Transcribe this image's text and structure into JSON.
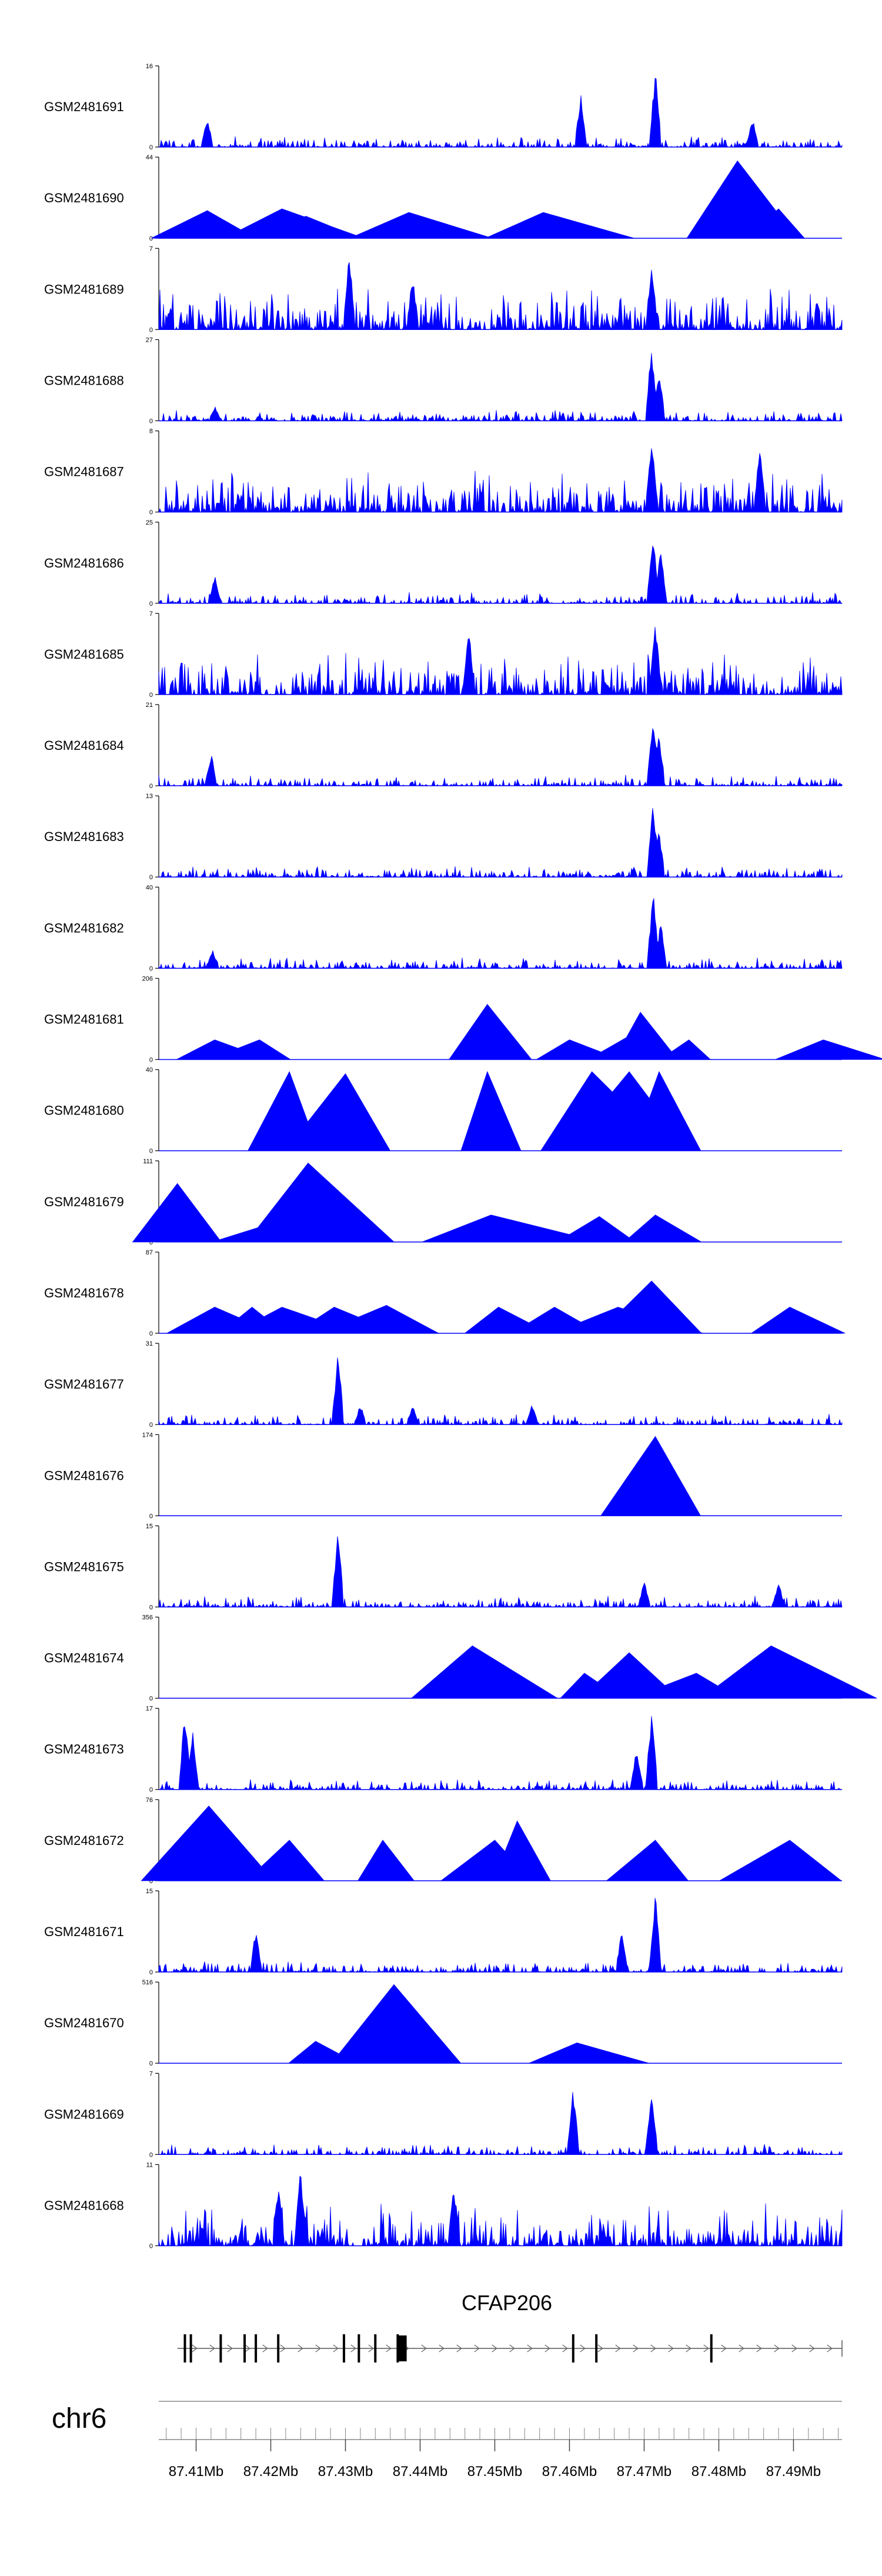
{
  "colors": {
    "signal": "#0000FF",
    "axis": "#000000",
    "exon": "#000000"
  },
  "chart_data": {
    "type": "area",
    "title": "",
    "xlabel": "",
    "ylabel": "",
    "chromosome": "chr6",
    "xlim": [
      87.405,
      87.4965
    ],
    "x_unit": "Mb",
    "tracks": [
      {
        "name": "GSM2481691",
        "ymax": 16,
        "ymin": 0,
        "style": "dense",
        "peaks": [
          {
            "x": 87.4115,
            "y": 6
          },
          {
            "x": 87.4615,
            "y": 11
          },
          {
            "x": 87.4715,
            "y": 16
          },
          {
            "x": 87.4845,
            "y": 6
          }
        ]
      },
      {
        "name": "GSM2481690",
        "ymax": 44,
        "ymin": 0,
        "style": "sparse",
        "peaks": [
          {
            "x": 87.4115,
            "y": 15
          },
          {
            "x": 87.4215,
            "y": 16
          },
          {
            "x": 87.4247,
            "y": 12
          },
          {
            "x": 87.4385,
            "y": 14
          },
          {
            "x": 87.4565,
            "y": 14
          },
          {
            "x": 87.4825,
            "y": 42
          },
          {
            "x": 87.488,
            "y": 16
          }
        ]
      },
      {
        "name": "GSM2481689",
        "ymax": 7,
        "ymin": 0,
        "style": "noise",
        "peaks": [
          {
            "x": 87.4305,
            "y": 7
          },
          {
            "x": 87.439,
            "y": 5
          },
          {
            "x": 87.471,
            "y": 6
          }
        ]
      },
      {
        "name": "GSM2481688",
        "ymax": 27,
        "ymin": 0,
        "style": "dense",
        "peaks": [
          {
            "x": 87.4125,
            "y": 5
          },
          {
            "x": 87.471,
            "y": 27
          },
          {
            "x": 87.472,
            "y": 18
          }
        ]
      },
      {
        "name": "GSM2481687",
        "ymax": 8,
        "ymin": 0,
        "style": "noise",
        "peaks": [
          {
            "x": 87.471,
            "y": 8
          },
          {
            "x": 87.4855,
            "y": 7
          }
        ]
      },
      {
        "name": "GSM2481686",
        "ymax": 25,
        "ymin": 0,
        "style": "dense",
        "peaks": [
          {
            "x": 87.4125,
            "y": 9
          },
          {
            "x": 87.4712,
            "y": 25
          },
          {
            "x": 87.4722,
            "y": 18
          }
        ]
      },
      {
        "name": "GSM2481685",
        "ymax": 7,
        "ymin": 0,
        "style": "noise",
        "peaks": [
          {
            "x": 87.4715,
            "y": 7
          },
          {
            "x": 87.4465,
            "y": 6
          }
        ]
      },
      {
        "name": "GSM2481684",
        "ymax": 21,
        "ymin": 0,
        "style": "dense",
        "peaks": [
          {
            "x": 87.412,
            "y": 9
          },
          {
            "x": 87.4712,
            "y": 21
          },
          {
            "x": 87.472,
            "y": 14
          }
        ]
      },
      {
        "name": "GSM2481683",
        "ymax": 13,
        "ymin": 0,
        "style": "dense",
        "peaks": [
          {
            "x": 87.4712,
            "y": 13
          },
          {
            "x": 87.472,
            "y": 8
          }
        ]
      },
      {
        "name": "GSM2481682",
        "ymax": 40,
        "ymin": 0,
        "style": "dense",
        "peaks": [
          {
            "x": 87.4122,
            "y": 10
          },
          {
            "x": 87.4712,
            "y": 40
          },
          {
            "x": 87.4722,
            "y": 25
          }
        ]
      },
      {
        "name": "GSM2481681",
        "ymax": 206,
        "ymin": 0,
        "style": "sparse",
        "peaks": [
          {
            "x": 87.4125,
            "y": 50
          },
          {
            "x": 87.4185,
            "y": 50
          },
          {
            "x": 87.449,
            "y": 140
          },
          {
            "x": 87.46,
            "y": 50
          },
          {
            "x": 87.468,
            "y": 60
          },
          {
            "x": 87.4695,
            "y": 120
          },
          {
            "x": 87.476,
            "y": 50
          },
          {
            "x": 87.494,
            "y": 50
          }
        ]
      },
      {
        "name": "GSM2481680",
        "ymax": 40,
        "ymin": 0,
        "style": "sparse",
        "peaks": [
          {
            "x": 87.4225,
            "y": 39
          },
          {
            "x": 87.43,
            "y": 38
          },
          {
            "x": 87.449,
            "y": 39
          },
          {
            "x": 87.463,
            "y": 39
          },
          {
            "x": 87.468,
            "y": 39
          },
          {
            "x": 87.472,
            "y": 39
          }
        ]
      },
      {
        "name": "GSM2481679",
        "ymax": 111,
        "ymin": 0,
        "style": "sparse",
        "peaks": [
          {
            "x": 87.4075,
            "y": 80
          },
          {
            "x": 87.4215,
            "y": 30
          },
          {
            "x": 87.425,
            "y": 108
          },
          {
            "x": 87.4495,
            "y": 37
          },
          {
            "x": 87.464,
            "y": 35
          },
          {
            "x": 87.4715,
            "y": 37
          }
        ]
      },
      {
        "name": "GSM2481678",
        "ymax": 87,
        "ymin": 0,
        "style": "sparse",
        "peaks": [
          {
            "x": 87.4125,
            "y": 28
          },
          {
            "x": 87.4175,
            "y": 28
          },
          {
            "x": 87.4215,
            "y": 28
          },
          {
            "x": 87.4285,
            "y": 28
          },
          {
            "x": 87.4355,
            "y": 30
          },
          {
            "x": 87.4505,
            "y": 28
          },
          {
            "x": 87.458,
            "y": 28
          },
          {
            "x": 87.4665,
            "y": 28
          },
          {
            "x": 87.471,
            "y": 56
          },
          {
            "x": 87.4895,
            "y": 28
          }
        ]
      },
      {
        "name": "GSM2481677",
        "ymax": 31,
        "ymin": 0,
        "style": "dense",
        "peaks": [
          {
            "x": 87.429,
            "y": 29
          },
          {
            "x": 87.432,
            "y": 8
          },
          {
            "x": 87.439,
            "y": 8
          },
          {
            "x": 87.455,
            "y": 8
          }
        ]
      },
      {
        "name": "GSM2481676",
        "ymax": 174,
        "ymin": 0,
        "style": "sparse",
        "peaks": [
          {
            "x": 87.4715,
            "y": 170
          }
        ]
      },
      {
        "name": "GSM2481675",
        "ymax": 15,
        "ymin": 0,
        "style": "dense",
        "peaks": [
          {
            "x": 87.429,
            "y": 15
          },
          {
            "x": 87.47,
            "y": 5
          },
          {
            "x": 87.488,
            "y": 5
          }
        ]
      },
      {
        "name": "GSM2481674",
        "ymax": 356,
        "ymin": 0,
        "style": "sparse",
        "peaks": [
          {
            "x": 87.447,
            "y": 230
          },
          {
            "x": 87.462,
            "y": 110
          },
          {
            "x": 87.468,
            "y": 200
          },
          {
            "x": 87.477,
            "y": 110
          },
          {
            "x": 87.487,
            "y": 230
          }
        ]
      },
      {
        "name": "GSM2481673",
        "ymax": 17,
        "ymin": 0,
        "style": "dense",
        "peaks": [
          {
            "x": 87.4085,
            "y": 17
          },
          {
            "x": 87.4095,
            "y": 13
          },
          {
            "x": 87.471,
            "y": 17
          },
          {
            "x": 87.469,
            "y": 9
          }
        ]
      },
      {
        "name": "GSM2481672",
        "ymax": 76,
        "ymin": 0,
        "style": "sparse",
        "peaks": [
          {
            "x": 87.4117,
            "y": 70
          },
          {
            "x": 87.4225,
            "y": 38
          },
          {
            "x": 87.435,
            "y": 38
          },
          {
            "x": 87.45,
            "y": 38
          },
          {
            "x": 87.453,
            "y": 56
          },
          {
            "x": 87.4715,
            "y": 38
          },
          {
            "x": 87.4895,
            "y": 38
          }
        ]
      },
      {
        "name": "GSM2481671",
        "ymax": 15,
        "ymin": 0,
        "style": "dense",
        "peaks": [
          {
            "x": 87.4715,
            "y": 15
          },
          {
            "x": 87.418,
            "y": 8
          },
          {
            "x": 87.467,
            "y": 8
          }
        ]
      },
      {
        "name": "GSM2481670",
        "ymax": 516,
        "ymin": 0,
        "style": "sparse",
        "peaks": [
          {
            "x": 87.426,
            "y": 140
          },
          {
            "x": 87.4365,
            "y": 500
          },
          {
            "x": 87.461,
            "y": 130
          }
        ]
      },
      {
        "name": "GSM2481669",
        "ymax": 7,
        "ymin": 0,
        "style": "dense",
        "peaks": [
          {
            "x": 87.4605,
            "y": 6
          },
          {
            "x": 87.471,
            "y": 6
          }
        ]
      },
      {
        "name": "GSM2481668",
        "ymax": 11,
        "ymin": 0,
        "style": "noise",
        "peaks": [
          {
            "x": 87.424,
            "y": 11
          },
          {
            "x": 87.421,
            "y": 9
          },
          {
            "x": 87.4445,
            "y": 9
          }
        ]
      }
    ],
    "gene": {
      "name": "CFAP206",
      "start": 87.4075,
      "end": 87.4965,
      "strand": "+",
      "exons": [
        87.4085,
        87.4093,
        87.4133,
        87.4165,
        87.418,
        87.421,
        87.4298,
        87.4318,
        87.434,
        87.437,
        87.4605,
        87.4636,
        87.479
      ],
      "thick_exon": [
        87.437,
        87.4382
      ]
    },
    "x_ticks": [
      87.41,
      87.42,
      87.43,
      87.44,
      87.45,
      87.46,
      87.47,
      87.48,
      87.49
    ],
    "x_tick_labels": [
      "87.41Mb",
      "87.42Mb",
      "87.43Mb",
      "87.44Mb",
      "87.45Mb",
      "87.46Mb",
      "87.47Mb",
      "87.48Mb",
      "87.49Mb"
    ],
    "minor_tick_step": 0.002
  }
}
